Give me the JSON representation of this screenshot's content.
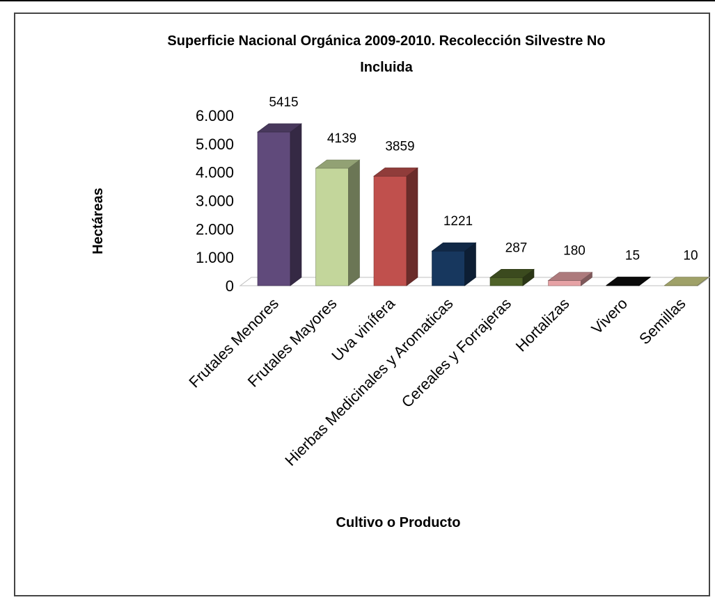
{
  "chart_data": {
    "type": "bar",
    "title_line1": "Superficie Nacional Orgánica 2009-2010. Recolección Silvestre No",
    "title_line2": "Incluida",
    "xlabel": "Cultivo o Producto",
    "ylabel": "Hectáreas",
    "ylim": [
      0,
      6000
    ],
    "yticks": [
      0,
      1000,
      2000,
      3000,
      4000,
      5000,
      6000
    ],
    "ytick_labels": [
      "0",
      "1.000",
      "2.000",
      "3.000",
      "4.000",
      "5.000",
      "6.000"
    ],
    "grid": false,
    "legend": "none",
    "categories": [
      "Frutales Menores",
      "Frutales Mayores",
      "Uva vinífera",
      "Hierbas Medicinales y Aromaticas",
      "Cereales y Forrajeras",
      "Hortalizas",
      "Vivero",
      "Semillas"
    ],
    "values": [
      5415,
      4139,
      3859,
      1221,
      287,
      180,
      15,
      10
    ],
    "data_labels": [
      "5415",
      "4139",
      "3859",
      "1221",
      "287",
      "180",
      "15",
      "10"
    ],
    "colors": [
      "#604a7b",
      "#c3d69b",
      "#c0504d",
      "#17375e",
      "#4f6228",
      "#e6a2a5",
      "#0d0d0d",
      "#d4d68a"
    ]
  }
}
